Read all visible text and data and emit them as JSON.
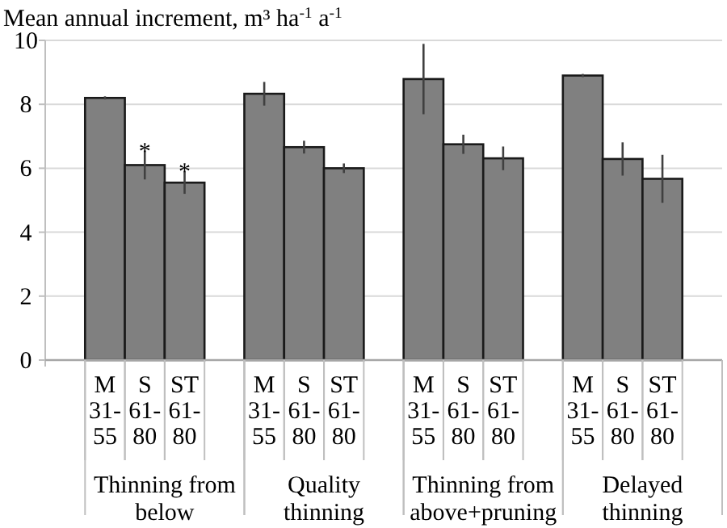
{
  "chart_data": {
    "type": "bar",
    "ylabel": "Mean annual increment, m³ ha$^{-1}$ a$^{-1}$",
    "categories": [
      null,
      "M 31-55",
      "S 61-80",
      "ST 61-80",
      null,
      "M 31-55",
      "S 61-80",
      "ST 61-80",
      null,
      "M 31-55",
      "S 61-80",
      "ST 61-80",
      null,
      "M 31-55",
      "S 61-80",
      "ST 61-80",
      null
    ],
    "values": [
      null,
      8.2,
      6.1,
      5.55,
      null,
      8.33,
      6.66,
      6.0,
      null,
      8.79,
      6.75,
      6.31,
      null,
      8.9,
      6.29,
      5.67,
      null
    ],
    "errors": [
      null,
      0.05,
      0.45,
      0.35,
      null,
      0.37,
      0.2,
      0.15,
      null,
      1.1,
      0.3,
      0.37,
      null,
      0.05,
      0.52,
      0.75,
      null
    ],
    "value_labels": [
      null,
      null,
      "*",
      "*",
      null,
      null,
      null,
      null,
      null,
      null,
      null,
      null,
      null,
      null,
      null,
      null,
      null
    ],
    "color": "#808080",
    "ylim": [
      0,
      10
    ],
    "yticks": [
      0,
      2,
      4,
      6,
      8,
      10
    ],
    "grid": "y",
    "annotations": [
      "Thinning from below",
      "Quality thinning",
      "Thinning from above+pruning",
      "Delayed thinning"
    ]
  }
}
